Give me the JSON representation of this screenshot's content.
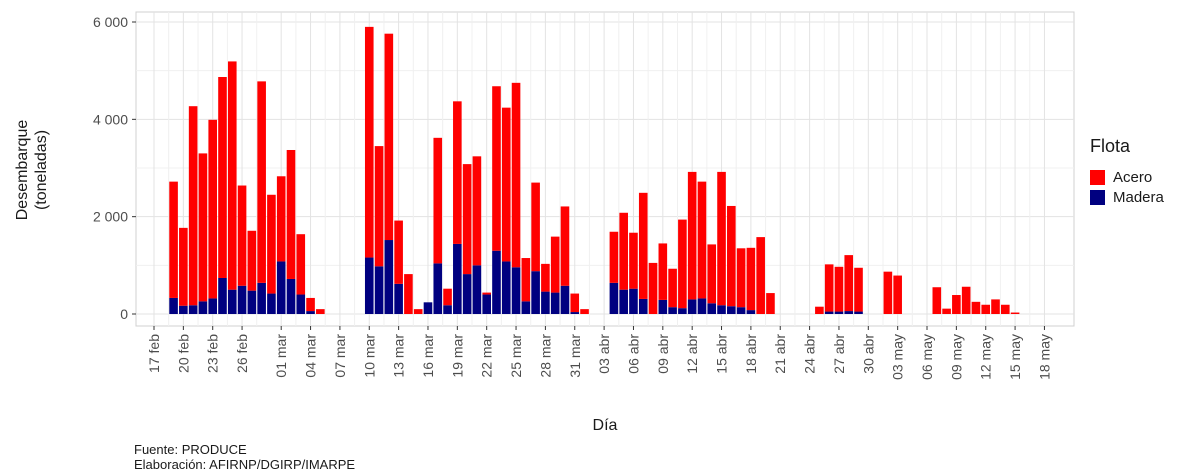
{
  "chart_data": {
    "type": "bar",
    "stacked": true,
    "xlabel": "Día",
    "ylabel_line1": "Desembarque",
    "ylabel_line2": "(toneladas)",
    "ylim": [
      0,
      6000
    ],
    "yticks": [
      0,
      2000,
      4000,
      6000
    ],
    "ytick_labels": [
      "0",
      "2 000",
      "4 000",
      "6 000"
    ],
    "x_start": "2024-02-17",
    "xtick_labels": [
      "17 feb",
      "20 feb",
      "23 feb",
      "26 feb",
      "01 mar",
      "04 mar",
      "07 mar",
      "10 mar",
      "13 mar",
      "16 mar",
      "19 mar",
      "22 mar",
      "25 mar",
      "28 mar",
      "31 mar",
      "03 abr",
      "06 abr",
      "09 abr",
      "12 abr",
      "15 abr",
      "18 abr",
      "21 abr",
      "24 abr",
      "27 abr",
      "30 abr",
      "03 may",
      "06 may",
      "09 may",
      "12 may",
      "15 may",
      "18 may"
    ],
    "xtick_dates": [
      "2024-02-17",
      "2024-02-20",
      "2024-02-23",
      "2024-02-26",
      "2024-03-01",
      "2024-03-04",
      "2024-03-07",
      "2024-03-10",
      "2024-03-13",
      "2024-03-16",
      "2024-03-19",
      "2024-03-22",
      "2024-03-25",
      "2024-03-28",
      "2024-03-31",
      "2024-04-03",
      "2024-04-06",
      "2024-04-09",
      "2024-04-12",
      "2024-04-15",
      "2024-04-18",
      "2024-04-21",
      "2024-04-24",
      "2024-04-27",
      "2024-04-30",
      "2024-05-03",
      "2024-05-06",
      "2024-05-09",
      "2024-05-12",
      "2024-05-15",
      "2024-05-18"
    ],
    "x": [
      "2024-02-19",
      "2024-02-20",
      "2024-02-21",
      "2024-02-22",
      "2024-02-23",
      "2024-02-24",
      "2024-02-25",
      "2024-02-26",
      "2024-02-27",
      "2024-02-28",
      "2024-02-29",
      "2024-03-01",
      "2024-03-02",
      "2024-03-03",
      "2024-03-04",
      "2024-03-05",
      "2024-03-10",
      "2024-03-11",
      "2024-03-12",
      "2024-03-13",
      "2024-03-14",
      "2024-03-15",
      "2024-03-16",
      "2024-03-17",
      "2024-03-18",
      "2024-03-19",
      "2024-03-20",
      "2024-03-21",
      "2024-03-22",
      "2024-03-23",
      "2024-03-24",
      "2024-03-25",
      "2024-03-26",
      "2024-03-27",
      "2024-03-28",
      "2024-03-29",
      "2024-03-30",
      "2024-03-31",
      "2024-04-01",
      "2024-04-04",
      "2024-04-05",
      "2024-04-06",
      "2024-04-07",
      "2024-04-08",
      "2024-04-09",
      "2024-04-10",
      "2024-04-11",
      "2024-04-12",
      "2024-04-13",
      "2024-04-14",
      "2024-04-15",
      "2024-04-16",
      "2024-04-17",
      "2024-04-18",
      "2024-04-19",
      "2024-04-20",
      "2024-04-25",
      "2024-04-26",
      "2024-04-27",
      "2024-04-28",
      "2024-04-29",
      "2024-05-02",
      "2024-05-03",
      "2024-05-07",
      "2024-05-08",
      "2024-05-09",
      "2024-05-10",
      "2024-05-11",
      "2024-05-12",
      "2024-05-13",
      "2024-05-14",
      "2024-05-15"
    ],
    "series": [
      {
        "name": "Madera",
        "color": "#000080",
        "values": [
          330,
          170,
          180,
          260,
          320,
          740,
          500,
          580,
          480,
          640,
          420,
          1080,
          720,
          400,
          60,
          0,
          1160,
          980,
          1520,
          620,
          0,
          0,
          240,
          1040,
          180,
          1440,
          820,
          1000,
          400,
          1300,
          1080,
          960,
          260,
          880,
          460,
          440,
          580,
          40,
          0,
          640,
          500,
          520,
          310,
          0,
          290,
          140,
          120,
          300,
          320,
          220,
          180,
          160,
          140,
          80,
          0,
          0,
          0,
          50,
          50,
          60,
          50,
          0,
          0,
          0,
          0,
          0,
          0,
          0,
          0,
          0,
          0,
          0
        ]
      },
      {
        "name": "Acero",
        "color": "#ff0000",
        "values": [
          2390,
          1600,
          4090,
          3040,
          3670,
          4130,
          4690,
          2060,
          1230,
          4140,
          2030,
          1750,
          2650,
          1240,
          270,
          100,
          4740,
          2470,
          4240,
          1300,
          820,
          100,
          0,
          2580,
          340,
          2930,
          2260,
          2240,
          40,
          3380,
          3160,
          3790,
          890,
          1820,
          570,
          1150,
          1630,
          380,
          100,
          1050,
          1580,
          1150,
          2180,
          1050,
          1160,
          790,
          1820,
          2620,
          2400,
          1210,
          2740,
          2060,
          1210,
          1280,
          1580,
          430,
          150,
          970,
          920,
          1150,
          900,
          870,
          790,
          550,
          110,
          390,
          560,
          250,
          190,
          300,
          190,
          30
        ]
      }
    ]
  },
  "legend": {
    "title": "Flota",
    "items": [
      {
        "label": "Acero",
        "color": "#ff0000"
      },
      {
        "label": "Madera",
        "color": "#000080"
      }
    ]
  },
  "caption": {
    "line1": "Fuente: PRODUCE",
    "line2": "Elaboración: AFIRNP/DGIRP/IMARPE"
  }
}
